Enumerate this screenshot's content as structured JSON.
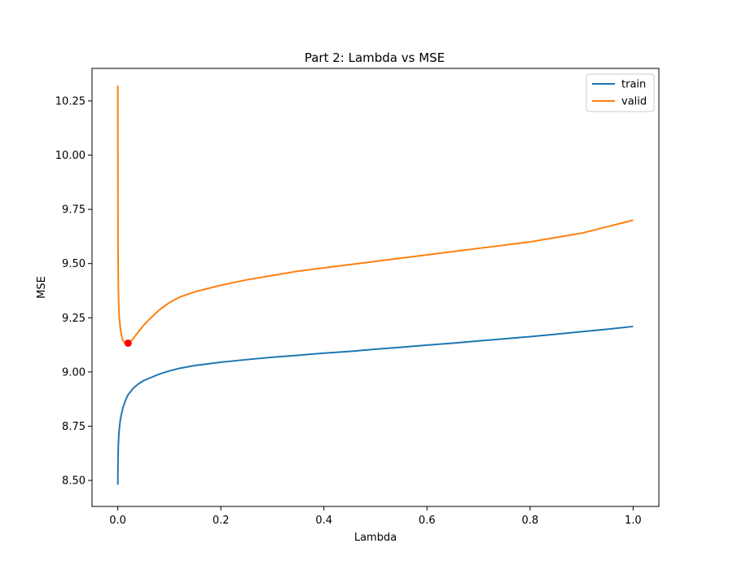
{
  "chart_data": {
    "type": "line",
    "title": "Part 2: Lambda vs MSE",
    "xlabel": "Lambda",
    "ylabel": "MSE",
    "xlim": [
      -0.05,
      1.05
    ],
    "ylim": [
      8.38,
      10.4
    ],
    "x_ticks": [
      0.0,
      0.2,
      0.4,
      0.6,
      0.8,
      1.0
    ],
    "x_tick_labels": [
      "0.0",
      "0.2",
      "0.4",
      "0.6",
      "0.8",
      "1.0"
    ],
    "y_ticks": [
      8.5,
      8.75,
      9.0,
      9.25,
      9.5,
      9.75,
      10.0,
      10.25
    ],
    "y_tick_labels": [
      "8.50",
      "8.75",
      "9.00",
      "9.25",
      "9.50",
      "9.75",
      "10.00",
      "10.25"
    ],
    "grid": false,
    "legend_position": "top-right",
    "series": [
      {
        "name": "train",
        "color": "#1f77b4",
        "x": [
          0.0,
          0.0005,
          0.001,
          0.002,
          0.003,
          0.005,
          0.0075,
          0.01,
          0.015,
          0.02,
          0.03,
          0.04,
          0.05,
          0.06,
          0.08,
          0.1,
          0.12,
          0.15,
          0.2,
          0.25,
          0.3,
          0.35,
          0.4,
          0.45,
          0.5,
          0.55,
          0.6,
          0.65,
          0.7,
          0.75,
          0.8,
          0.85,
          0.9,
          0.95,
          1.0
        ],
        "values": [
          8.48,
          8.6,
          8.66,
          8.71,
          8.74,
          8.78,
          8.81,
          8.835,
          8.87,
          8.895,
          8.925,
          8.945,
          8.96,
          8.97,
          8.99,
          9.005,
          9.017,
          9.03,
          9.045,
          9.057,
          9.068,
          9.077,
          9.087,
          9.095,
          9.105,
          9.114,
          9.124,
          9.133,
          9.143,
          9.153,
          9.163,
          9.174,
          9.186,
          9.197,
          9.21
        ]
      },
      {
        "name": "valid",
        "color": "#ff7f0e",
        "x": [
          0.0,
          0.0002,
          0.0005,
          0.001,
          0.002,
          0.003,
          0.005,
          0.0075,
          0.01,
          0.013,
          0.016,
          0.02,
          0.025,
          0.03,
          0.04,
          0.05,
          0.06,
          0.08,
          0.1,
          0.12,
          0.15,
          0.2,
          0.25,
          0.3,
          0.35,
          0.4,
          0.45,
          0.5,
          0.55,
          0.6,
          0.65,
          0.7,
          0.75,
          0.8,
          0.85,
          0.9,
          0.95,
          1.0
        ],
        "values": [
          10.32,
          9.9,
          9.55,
          9.4,
          9.29,
          9.25,
          9.2,
          9.165,
          9.145,
          9.135,
          9.132,
          9.133,
          9.14,
          9.155,
          9.185,
          9.215,
          9.24,
          9.285,
          9.32,
          9.345,
          9.37,
          9.4,
          9.425,
          9.445,
          9.465,
          9.48,
          9.495,
          9.51,
          9.525,
          9.54,
          9.555,
          9.57,
          9.585,
          9.6,
          9.62,
          9.64,
          9.67,
          9.7
        ]
      }
    ],
    "marker": {
      "x": 0.02,
      "y": 9.133,
      "color": "#ff0000"
    }
  }
}
